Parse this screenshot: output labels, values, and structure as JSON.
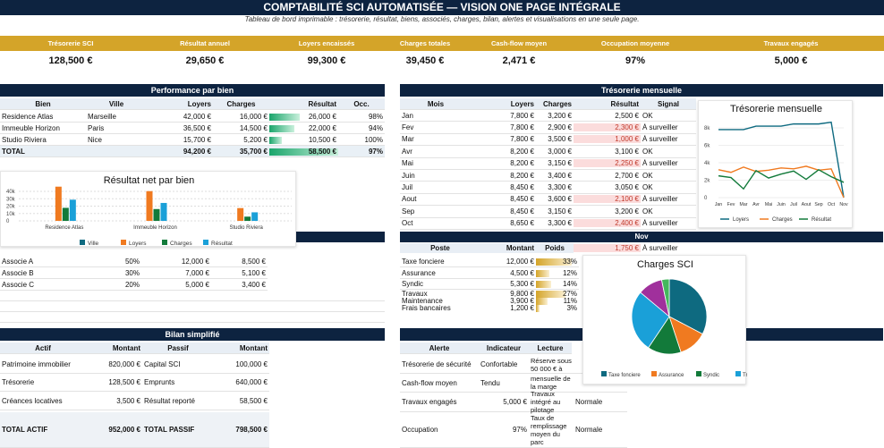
{
  "header": {
    "title": "COMPTABILITÉ SCI AUTOMATISÉE — VISION ONE PAGE INTÉGRALE",
    "subtitle": "Tableau de bord imprimable : trésorerie, résultat, biens, associés, charges, bilan, alertes et visualisations en une seule page."
  },
  "kpis": [
    {
      "label": "Trésorerie SCI",
      "value": "128,500 €"
    },
    {
      "label": "Résultat annuel",
      "value": "29,650 €"
    },
    {
      "label": "Loyers encaissés",
      "value": "99,300 €"
    },
    {
      "label": "Charges totales",
      "value": "39,450 €"
    },
    {
      "label": "Cash-flow moyen",
      "value": "2,471 €"
    },
    {
      "label": "Occupation moyenne",
      "value": "97%"
    },
    {
      "label": "Travaux engagés",
      "value": "5,000 €"
    }
  ],
  "perf": {
    "title": "Performance par bien",
    "headers": [
      "Bien",
      "Ville",
      "Loyers",
      "Charges",
      "Résultat",
      "Occ."
    ],
    "rows": [
      {
        "bien": "Residence Atlas",
        "ville": "Marseille",
        "loyers": "42,000 €",
        "charges": "16,000 €",
        "resultat": "26,000 €",
        "occ": "98%",
        "level": 0.44
      },
      {
        "bien": "Immeuble Horizon",
        "ville": "Paris",
        "loyers": "36,500 €",
        "charges": "14,500 €",
        "resultat": "22,000 €",
        "occ": "94%",
        "level": 0.37
      },
      {
        "bien": "Studio Riviera",
        "ville": "Nice",
        "loyers": "15,700 €",
        "charges": "5,200 €",
        "resultat": "10,500 €",
        "occ": "100%",
        "level": 0.18
      }
    ],
    "total": {
      "bien": "TOTAL",
      "loyers": "94,200 €",
      "charges": "35,700 €",
      "resultat": "58,500 €",
      "occ": "97%",
      "level": 1
    }
  },
  "treso": {
    "title": "Trésorerie mensuelle",
    "headers": [
      "Mois",
      "Loyers",
      "Charges",
      "Résultat",
      "Signal"
    ],
    "rows": [
      {
        "mois": "Jan",
        "loyers": "7,800 €",
        "charges": "3,200 €",
        "resultat": "2,500 €",
        "signal": "OK",
        "alert": false
      },
      {
        "mois": "Fev",
        "loyers": "7,800 €",
        "charges": "2,900 €",
        "resultat": "2,300 €",
        "signal": "À surveiller",
        "alert": true
      },
      {
        "mois": "Mar",
        "loyers": "7,800 €",
        "charges": "3,500 €",
        "resultat": "1,000 €",
        "signal": "À surveiller",
        "alert": true
      },
      {
        "mois": "Avr",
        "loyers": "8,200 €",
        "charges": "3,000 €",
        "resultat": "3,100 €",
        "signal": "OK",
        "alert": false
      },
      {
        "mois": "Mai",
        "loyers": "8,200 €",
        "charges": "3,150 €",
        "resultat": "2,250 €",
        "signal": "À surveiller",
        "alert": true
      },
      {
        "mois": "Juin",
        "loyers": "8,200 €",
        "charges": "3,400 €",
        "resultat": "2,700 €",
        "signal": "OK",
        "alert": false
      },
      {
        "mois": "Juil",
        "loyers": "8,450 €",
        "charges": "3,300 €",
        "resultat": "3,050 €",
        "signal": "OK",
        "alert": false
      },
      {
        "mois": "Aout",
        "loyers": "8,450 €",
        "charges": "3,600 €",
        "resultat": "2,100 €",
        "signal": "À surveiller",
        "alert": true
      },
      {
        "mois": "Sep",
        "loyers": "8,450 €",
        "charges": "3,150 €",
        "resultat": "3,200 €",
        "signal": "OK",
        "alert": false
      },
      {
        "mois": "Oct",
        "loyers": "8,650 €",
        "charges": "3,300 €",
        "resultat": "2,400 €",
        "signal": "À surveiller",
        "alert": true
      },
      {
        "mois": "Nov",
        "loyers": "",
        "charges": "",
        "resultat": "1,750 €",
        "signal": "À surveiller",
        "alert": true
      }
    ]
  },
  "associes": {
    "rows": [
      {
        "nom": "Associe A",
        "pct": "50%",
        "montant": "12,000 €",
        "valeur": "8,500 €"
      },
      {
        "nom": "Associe B",
        "pct": "30%",
        "montant": "7,000 €",
        "valeur": "5,100 €"
      },
      {
        "nom": "Associe C",
        "pct": "20%",
        "montant": "5,000 €",
        "valeur": "3,400 €"
      }
    ]
  },
  "charges": {
    "headers": [
      "Poste",
      "Montant",
      "Poids"
    ],
    "rows": [
      {
        "poste": "Taxe fonciere",
        "montant": "12,000 €",
        "poids": "33%",
        "level": 0.33
      },
      {
        "poste": "Assurance",
        "montant": "4,500 €",
        "poids": "12%",
        "level": 0.12
      },
      {
        "poste": "Syndic",
        "montant": "5,300 €",
        "poids": "14%",
        "level": 0.14
      },
      {
        "poste": "Travaux",
        "montant": "9,800 €",
        "poids": "27%",
        "level": 0.27
      },
      {
        "poste": "Maintenance",
        "montant": "3,900 €",
        "poids": "11%",
        "level": 0.11
      },
      {
        "poste": "Frais bancaires",
        "montant": "1,200 €",
        "poids": "3%",
        "level": 0.03
      }
    ]
  },
  "bilan": {
    "title": "Bilan simplifié",
    "headers": [
      "Actif",
      "Montant",
      "Passif",
      "Montant"
    ],
    "rows": [
      {
        "actif": "Patrimoine immobilier",
        "m1": "820,000 €",
        "passif": "Capital SCI",
        "m2": "100,000 €"
      },
      {
        "actif": "Trésorerie",
        "m1": "128,500 €",
        "passif": "Emprunts",
        "m2": "640,000 €"
      },
      {
        "actif": "Créances locatives",
        "m1": "3,500 €",
        "passif": "Résultat reporté",
        "m2": "58,500 €"
      }
    ],
    "total": {
      "actif": "TOTAL ACTIF",
      "m1": "952,000 €",
      "passif": "TOTAL PASSIF",
      "m2": "798,500 €"
    }
  },
  "alertes": {
    "headers": [
      "Alerte",
      "Indicateur",
      "Lecture"
    ],
    "rows": [
      {
        "alerte": "Trésorerie de sécurité",
        "ind": "Confortable",
        "lecture": "Réserve sous 50 000 € à",
        "extra": ""
      },
      {
        "alerte": "Cash-flow moyen",
        "ind": "Tendu",
        "lecture": "mensuelle de la marge",
        "extra": ""
      },
      {
        "alerte": "Travaux engagés",
        "ind": "5,000 €",
        "lecture": "Travaux intégré au pilotage",
        "extra": "Normale"
      },
      {
        "alerte": "Occupation",
        "ind": "97%",
        "lecture": "Taux de remplissage moyen du parc",
        "extra": "Normale"
      }
    ]
  },
  "chart_bar": {
    "title": "Résultat net par bien",
    "yticks": [
      "40k",
      "30k",
      "20k",
      "10k",
      "0"
    ],
    "categories": [
      "Residence Atlas",
      "Immeuble Horizon",
      "Studio Riviera"
    ],
    "legend": [
      "Ville",
      "Loyers",
      "Charges",
      "Résultat"
    ],
    "colors": [
      "#0e6a80",
      "#f07a20",
      "#127a3a",
      "#1aa0d8"
    ],
    "series": [
      {
        "name": "Loyers",
        "values": [
          42000,
          36500,
          15700
        ]
      },
      {
        "name": "Charges",
        "values": [
          16000,
          14500,
          5200
        ]
      },
      {
        "name": "Résultat",
        "values": [
          26000,
          22000,
          10500
        ]
      }
    ],
    "ymax": 45000
  },
  "chart_pie": {
    "title": "Charges SCI",
    "legend": [
      "Taxe fonciere",
      "Assurance",
      "Syndic",
      "Tr"
    ],
    "values": [
      12000,
      4500,
      5300,
      9800,
      3900,
      1200
    ],
    "colors": [
      "#0e6a80",
      "#f07a20",
      "#127a3a",
      "#1aa0d8",
      "#a0309c",
      "#43b85c"
    ]
  }
}
